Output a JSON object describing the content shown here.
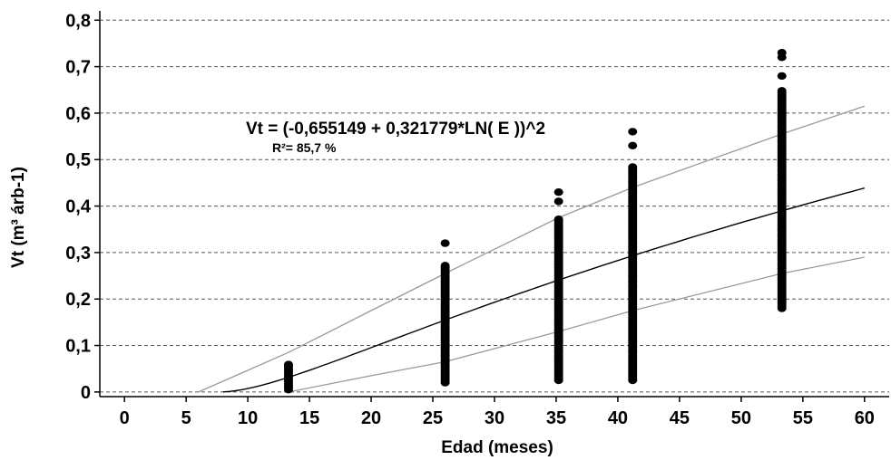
{
  "chart_data": {
    "type": "scatter",
    "title": "",
    "xlabel": "Edad (meses)",
    "ylabel": "Vt (m³ árb-1)",
    "xlim": [
      -2,
      62
    ],
    "ylim": [
      -0.01,
      0.82
    ],
    "xticks": [
      0,
      5,
      10,
      15,
      20,
      25,
      30,
      35,
      40,
      45,
      50,
      55,
      60
    ],
    "yticks": [
      0,
      0.1,
      0.2,
      0.3,
      0.4,
      0.5,
      0.6,
      0.7,
      0.8
    ],
    "xtick_labels": [
      "0",
      "5",
      "10",
      "15",
      "20",
      "25",
      "30",
      "35",
      "40",
      "45",
      "50",
      "55",
      "60"
    ],
    "ytick_labels": [
      "0",
      "0,1",
      "0,2",
      "0,3",
      "0,4",
      "0,5",
      "0,6",
      "0,7",
      "0,8"
    ],
    "grid": "horizontal dashed",
    "equation": "Vt = (-0,655149 + 0,321779*LN( E ))^2",
    "r2_text": "R²= 85,7 %",
    "model": {
      "a": -0.655149,
      "b": 0.321779
    },
    "upper_band": [
      [
        6,
        0.0
      ],
      [
        13.3,
        0.085
      ],
      [
        20,
        0.175
      ],
      [
        26,
        0.255
      ],
      [
        35.2,
        0.375
      ],
      [
        41.2,
        0.44
      ],
      [
        53.3,
        0.555
      ],
      [
        60,
        0.615
      ]
    ],
    "lower_band": [
      [
        13.3,
        0.0
      ],
      [
        20,
        0.035
      ],
      [
        26,
        0.065
      ],
      [
        35.2,
        0.13
      ],
      [
        41.2,
        0.175
      ],
      [
        53.3,
        0.255
      ],
      [
        60,
        0.29
      ]
    ],
    "fit_range": [
      8,
      60
    ],
    "point_groups": [
      {
        "x": 13.3,
        "y_min": 0.005,
        "y_max": 0.06,
        "outliers": []
      },
      {
        "x": 26.0,
        "y_min": 0.02,
        "y_max": 0.275,
        "outliers": [
          0.32
        ]
      },
      {
        "x": 35.2,
        "y_min": 0.025,
        "y_max": 0.375,
        "outliers": [
          0.41,
          0.43
        ]
      },
      {
        "x": 41.2,
        "y_min": 0.025,
        "y_max": 0.485,
        "outliers": [
          0.53,
          0.56
        ]
      },
      {
        "x": 53.3,
        "y_min": 0.18,
        "y_max": 0.65,
        "outliers": [
          0.68,
          0.72,
          0.73
        ]
      }
    ],
    "colors": {
      "points": "#000000",
      "fit": "#000000",
      "band": "#9a9a9a",
      "grid": "#555555",
      "axis": "#000000"
    }
  }
}
